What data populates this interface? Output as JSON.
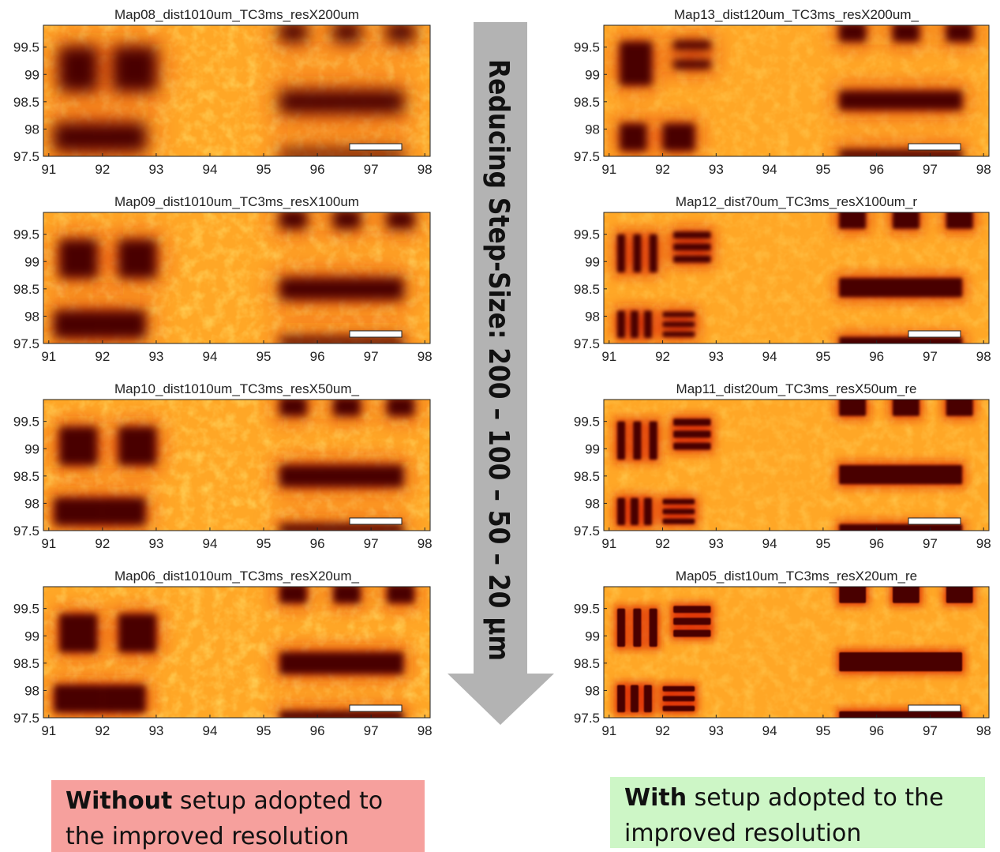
{
  "panels": [
    {
      "type": "heatmap",
      "title": "Map08_dist1010um_TC3ms_resX200um",
      "xlim": [
        90.9,
        98.1
      ],
      "ylim": [
        97.5,
        99.9
      ],
      "xticks": [
        91,
        92,
        93,
        94,
        95,
        96,
        97,
        98
      ],
      "yticks": [
        97.5,
        98,
        98.5,
        99,
        99.5
      ],
      "features": [
        [
          91.2,
          98.7,
          91.9,
          99.5
        ],
        [
          92.2,
          98.7,
          93.0,
          99.5
        ],
        [
          91.1,
          97.6,
          92.0,
          98.1
        ],
        [
          92.0,
          97.6,
          92.8,
          98.1
        ],
        [
          95.3,
          99.6,
          95.8,
          99.95
        ],
        [
          96.3,
          99.6,
          96.8,
          99.95
        ],
        [
          97.3,
          99.6,
          97.8,
          99.95
        ],
        [
          95.3,
          98.3,
          97.6,
          98.7
        ],
        [
          95.3,
          97.45,
          97.6,
          97.62
        ]
      ]
    },
    {
      "type": "heatmap",
      "title": "Map09_dist1010um_TC3ms_resX100um",
      "xlim": [
        90.9,
        98.1
      ],
      "ylim": [
        97.5,
        99.9
      ],
      "xticks": [
        91,
        92,
        93,
        94,
        95,
        96,
        97,
        98
      ],
      "yticks": [
        97.5,
        98,
        98.5,
        99,
        99.5
      ],
      "features": [
        [
          91.2,
          98.7,
          91.9,
          99.4
        ],
        [
          92.3,
          98.7,
          93.0,
          99.4
        ],
        [
          91.1,
          97.6,
          92.0,
          98.1
        ],
        [
          92.0,
          97.6,
          92.8,
          98.1
        ],
        [
          95.3,
          99.6,
          95.8,
          99.95
        ],
        [
          96.3,
          99.6,
          96.8,
          99.95
        ],
        [
          97.3,
          99.6,
          97.8,
          99.95
        ],
        [
          95.3,
          98.3,
          97.6,
          98.7
        ],
        [
          95.3,
          97.45,
          97.6,
          97.62
        ]
      ]
    },
    {
      "type": "heatmap",
      "title": "Map10_dist1010um_TC3ms_resX50um_",
      "xlim": [
        90.9,
        98.1
      ],
      "ylim": [
        97.5,
        99.9
      ],
      "xticks": [
        91,
        92,
        93,
        94,
        95,
        96,
        97,
        98
      ],
      "yticks": [
        97.5,
        98,
        98.5,
        99,
        99.5
      ],
      "features": [
        [
          91.2,
          98.7,
          91.9,
          99.4
        ],
        [
          92.3,
          98.7,
          93.0,
          99.4
        ],
        [
          91.1,
          97.6,
          92.0,
          98.1
        ],
        [
          92.0,
          97.6,
          92.8,
          98.1
        ],
        [
          95.3,
          99.6,
          95.8,
          99.95
        ],
        [
          96.3,
          99.6,
          96.8,
          99.95
        ],
        [
          97.3,
          99.6,
          97.8,
          99.95
        ],
        [
          95.3,
          98.3,
          97.6,
          98.7
        ],
        [
          95.3,
          97.45,
          97.6,
          97.62
        ]
      ]
    },
    {
      "type": "heatmap",
      "title": "Map06_dist1010um_TC3ms_resX20um_",
      "xlim": [
        90.9,
        98.1
      ],
      "ylim": [
        97.5,
        99.9
      ],
      "xticks": [
        91,
        92,
        93,
        94,
        95,
        96,
        97,
        98
      ],
      "yticks": [
        97.5,
        98,
        98.5,
        99,
        99.5
      ],
      "features": [
        [
          91.2,
          98.7,
          91.9,
          99.4
        ],
        [
          92.3,
          98.7,
          93.0,
          99.4
        ],
        [
          91.1,
          97.6,
          92.0,
          98.1
        ],
        [
          92.0,
          97.6,
          92.8,
          98.1
        ],
        [
          95.3,
          99.6,
          95.8,
          99.95
        ],
        [
          96.3,
          99.6,
          96.8,
          99.95
        ],
        [
          97.3,
          99.6,
          97.8,
          99.95
        ],
        [
          95.3,
          98.3,
          97.6,
          98.7
        ],
        [
          95.3,
          97.45,
          97.6,
          97.62
        ]
      ]
    },
    {
      "type": "heatmap",
      "title": "Map13_dist120um_TC3ms_resX200um_",
      "xlim": [
        90.9,
        98.1
      ],
      "ylim": [
        97.5,
        99.9
      ],
      "xticks": [
        91,
        92,
        93,
        94,
        95,
        96,
        97,
        98
      ],
      "yticks": [
        97.5,
        98,
        98.5,
        99,
        99.5
      ],
      "features": [
        [
          91.2,
          98.8,
          91.8,
          99.6
        ],
        [
          92.2,
          99.45,
          92.9,
          99.62
        ],
        [
          92.2,
          99.1,
          92.9,
          99.27
        ],
        [
          91.2,
          97.6,
          91.7,
          98.1
        ],
        [
          92.0,
          97.6,
          92.6,
          98.1
        ],
        [
          95.3,
          99.6,
          95.8,
          99.95
        ],
        [
          96.3,
          99.6,
          96.8,
          99.95
        ],
        [
          97.3,
          99.6,
          97.8,
          99.95
        ],
        [
          95.3,
          98.35,
          97.6,
          98.7
        ],
        [
          95.3,
          97.45,
          97.6,
          97.62
        ]
      ]
    },
    {
      "type": "heatmap",
      "title": "Map12_dist70um_TC3ms_resX100um_r",
      "xlim": [
        90.9,
        98.1
      ],
      "ylim": [
        97.5,
        99.9
      ],
      "xticks": [
        91,
        92,
        93,
        94,
        95,
        96,
        97,
        98
      ],
      "yticks": [
        97.5,
        98,
        98.5,
        99,
        99.5
      ],
      "features": [
        [
          91.15,
          98.8,
          91.3,
          99.5
        ],
        [
          91.45,
          98.8,
          91.6,
          99.5
        ],
        [
          91.75,
          98.8,
          91.9,
          99.5
        ],
        [
          92.2,
          99.42,
          92.9,
          99.55
        ],
        [
          92.2,
          99.2,
          92.9,
          99.33
        ],
        [
          92.2,
          98.98,
          92.9,
          99.11
        ],
        [
          91.15,
          97.6,
          91.3,
          98.1
        ],
        [
          91.4,
          97.6,
          91.55,
          98.1
        ],
        [
          91.65,
          97.6,
          91.8,
          98.1
        ],
        [
          92.0,
          97.98,
          92.6,
          98.08
        ],
        [
          92.0,
          97.8,
          92.6,
          97.9
        ],
        [
          92.0,
          97.62,
          92.6,
          97.72
        ],
        [
          95.3,
          99.6,
          95.8,
          99.95
        ],
        [
          96.3,
          99.6,
          96.8,
          99.95
        ],
        [
          97.3,
          99.6,
          97.8,
          99.95
        ],
        [
          95.3,
          98.35,
          97.6,
          98.7
        ],
        [
          95.3,
          97.45,
          97.6,
          97.62
        ]
      ]
    },
    {
      "type": "heatmap",
      "title": "Map11_dist20um_TC3ms_resX50um_re",
      "xlim": [
        90.9,
        98.1
      ],
      "ylim": [
        97.5,
        99.9
      ],
      "xticks": [
        91,
        92,
        93,
        94,
        95,
        96,
        97,
        98
      ],
      "yticks": [
        97.5,
        98,
        98.5,
        99,
        99.5
      ],
      "features": [
        [
          91.15,
          98.8,
          91.3,
          99.5
        ],
        [
          91.45,
          98.8,
          91.6,
          99.5
        ],
        [
          91.75,
          98.8,
          91.9,
          99.5
        ],
        [
          92.2,
          99.42,
          92.9,
          99.55
        ],
        [
          92.2,
          99.2,
          92.9,
          99.33
        ],
        [
          92.2,
          98.98,
          92.9,
          99.11
        ],
        [
          91.15,
          97.6,
          91.3,
          98.1
        ],
        [
          91.4,
          97.6,
          91.55,
          98.1
        ],
        [
          91.65,
          97.6,
          91.8,
          98.1
        ],
        [
          92.0,
          97.98,
          92.6,
          98.08
        ],
        [
          92.0,
          97.8,
          92.6,
          97.9
        ],
        [
          92.0,
          97.62,
          92.6,
          97.72
        ],
        [
          95.3,
          99.6,
          95.8,
          99.95
        ],
        [
          96.3,
          99.6,
          96.8,
          99.95
        ],
        [
          97.3,
          99.6,
          97.8,
          99.95
        ],
        [
          95.3,
          98.35,
          97.6,
          98.7
        ],
        [
          95.3,
          97.45,
          97.6,
          97.62
        ]
      ]
    },
    {
      "type": "heatmap",
      "title": "Map05_dist10um_TC3ms_resX20um_re",
      "xlim": [
        90.9,
        98.1
      ],
      "ylim": [
        97.5,
        99.9
      ],
      "xticks": [
        91,
        92,
        93,
        94,
        95,
        96,
        97,
        98
      ],
      "yticks": [
        97.5,
        98,
        98.5,
        99,
        99.5
      ],
      "features": [
        [
          91.15,
          98.8,
          91.3,
          99.5
        ],
        [
          91.45,
          98.8,
          91.6,
          99.5
        ],
        [
          91.75,
          98.8,
          91.9,
          99.5
        ],
        [
          92.2,
          99.42,
          92.9,
          99.55
        ],
        [
          92.2,
          99.2,
          92.9,
          99.33
        ],
        [
          92.2,
          98.98,
          92.9,
          99.11
        ],
        [
          91.15,
          97.6,
          91.3,
          98.1
        ],
        [
          91.4,
          97.6,
          91.55,
          98.1
        ],
        [
          91.65,
          97.6,
          91.8,
          98.1
        ],
        [
          92.0,
          97.98,
          92.6,
          98.08
        ],
        [
          92.0,
          97.8,
          92.6,
          97.9
        ],
        [
          92.0,
          97.62,
          92.6,
          97.72
        ],
        [
          95.3,
          99.6,
          95.8,
          99.95
        ],
        [
          96.3,
          99.6,
          96.8,
          99.95
        ],
        [
          97.3,
          99.6,
          97.8,
          99.95
        ],
        [
          95.3,
          98.35,
          97.6,
          98.7
        ],
        [
          95.3,
          97.45,
          97.6,
          97.62
        ]
      ]
    }
  ],
  "arrow_label": "Reducing Step-Size: 200 – 100 – 50 – 20 µm",
  "left_caption": {
    "bold": "Without",
    "line1": " setup adopted to",
    "line2": "the improved resolution"
  },
  "right_caption": {
    "bold": "With",
    "line1": " setup adopted to the",
    "line2": "improved resolution"
  }
}
